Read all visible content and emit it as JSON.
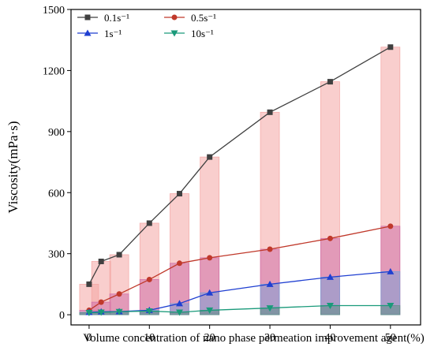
{
  "chart_data": {
    "type": "line",
    "xlabel": "Volume concentration of nano phase permeation improvement agent(%)",
    "ylabel": "Viscosity(mPa·s)",
    "x_ticks": [
      "0",
      "10",
      "20",
      "30",
      "40",
      "50"
    ],
    "y_ticks": [
      "0",
      "300",
      "600",
      "900",
      "1200",
      "1500"
    ],
    "xlim": [
      -3,
      55
    ],
    "ylim": [
      -50,
      1500
    ],
    "x": [
      0,
      2,
      5,
      10,
      15,
      20,
      30,
      40,
      50
    ],
    "legend_position": "top-left",
    "grid": false,
    "series": [
      {
        "name": "0.1s⁻¹",
        "color": "#404040",
        "marker": "square",
        "values": [
          150,
          262,
          295,
          450,
          595,
          775,
          995,
          1145,
          1315
        ]
      },
      {
        "name": "0.5s⁻¹",
        "color": "#c0392b",
        "marker": "circle",
        "values": [
          22,
          62,
          102,
          173,
          253,
          280,
          322,
          375,
          435
        ]
      },
      {
        "name": "1s⁻¹",
        "color": "#1f3fd1",
        "marker": "triangle-up",
        "values": [
          12,
          15,
          16,
          22,
          55,
          108,
          150,
          185,
          212
        ]
      },
      {
        "name": "10s⁻¹",
        "color": "#1a9a7a",
        "marker": "triangle-down",
        "values": [
          10,
          12,
          15,
          18,
          12,
          22,
          33,
          45,
          45
        ]
      }
    ],
    "bar_colors": [
      "#f4a6a4",
      "#d06fa8",
      "#7f9fd6",
      "#5e8e86"
    ]
  }
}
